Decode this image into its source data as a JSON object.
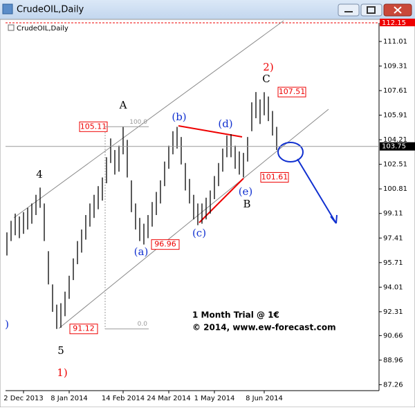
{
  "window_title": "CrudeOIL,Daily",
  "chart_data": {
    "type": "ohlc",
    "title": "CrudeOIL,Daily",
    "categories": [
      null,
      null,
      null,
      null,
      "2 Dec 2013",
      null,
      null,
      null,
      null,
      null,
      null,
      null,
      null,
      null,
      null,
      "8 Jan 2014",
      null,
      null,
      null,
      null,
      null,
      null,
      null,
      null,
      null,
      null,
      null,
      null,
      "14 Feb 2014",
      null,
      null,
      null,
      null,
      null,
      null,
      null,
      null,
      null,
      null,
      "24 Mar 2014",
      null,
      null,
      null,
      null,
      null,
      null,
      null,
      null,
      null,
      null,
      "1 May 2014",
      null,
      null,
      null,
      null,
      null,
      null,
      null,
      null,
      null,
      null,
      null,
      "8 Jun 2014",
      null,
      null,
      null
    ],
    "high": [
      97.8,
      98.6,
      99.1,
      98.9,
      99.2,
      99.5,
      99.8,
      100.4,
      100.9,
      99.8,
      96.5,
      94.2,
      92.8,
      92.9,
      93.7,
      94.8,
      96.0,
      97.2,
      98.0,
      99.0,
      99.8,
      100.4,
      101.0,
      101.6,
      103.0,
      104.3,
      103.5,
      103.8,
      105.11,
      104.2,
      101.4,
      99.8,
      98.8,
      98.4,
      99.0,
      99.9,
      100.6,
      101.4,
      102.7,
      103.8,
      104.8,
      105.1,
      104.4,
      102.6,
      101.5,
      100.4,
      99.8,
      99.8,
      100.2,
      100.7,
      101.7,
      102.6,
      103.6,
      104.5,
      104.6,
      103.8,
      103.4,
      103.3,
      104.4,
      106.8,
      107.51,
      107.0,
      107.5,
      107.2,
      106.2,
      105.1
    ],
    "low": [
      96.2,
      97.2,
      97.6,
      97.4,
      97.7,
      98.0,
      98.4,
      99.0,
      99.5,
      97.2,
      94.2,
      92.3,
      91.12,
      91.2,
      92.0,
      93.2,
      94.5,
      95.6,
      96.4,
      97.3,
      98.2,
      98.8,
      99.4,
      100.0,
      101.2,
      102.6,
      101.8,
      102.0,
      103.2,
      101.6,
      99.2,
      98.0,
      97.2,
      96.96,
      97.4,
      98.2,
      99.0,
      99.8,
      101.0,
      102.2,
      103.2,
      103.6,
      102.5,
      100.7,
      99.8,
      98.7,
      98.3,
      98.4,
      98.7,
      99.1,
      100.1,
      101.0,
      102.0,
      103.0,
      103.0,
      102.2,
      101.8,
      101.61,
      102.7,
      104.8,
      105.7,
      105.3,
      105.9,
      105.5,
      104.5,
      103.5
    ],
    "color": "#000000",
    "ylim": [
      86.85,
      112.3
    ],
    "yticks": [
      111.01,
      109.31,
      107.61,
      105.91,
      104.21,
      102.51,
      100.81,
      99.11,
      97.41,
      95.71,
      94.01,
      92.31,
      90.66,
      88.96,
      87.26
    ],
    "last_price": 103.75,
    "top_price": 112.15,
    "price_marks": [
      105.11,
      96.96,
      91.12,
      101.61,
      107.51
    ],
    "fib_levels": [
      {
        "value": 100,
        "label": "100.0"
      },
      {
        "value": 0,
        "label": "0.0"
      }
    ],
    "wave_labels": [
      "4",
      "5",
      "1)",
      "A",
      "(a)",
      "(b)",
      "(c)",
      "(d)",
      "(e)",
      "B",
      "2)",
      "C",
      ")"
    ],
    "watermark": [
      "1 Month Trial @ 1€",
      "© 2014, www.ew-forecast.com"
    ]
  }
}
